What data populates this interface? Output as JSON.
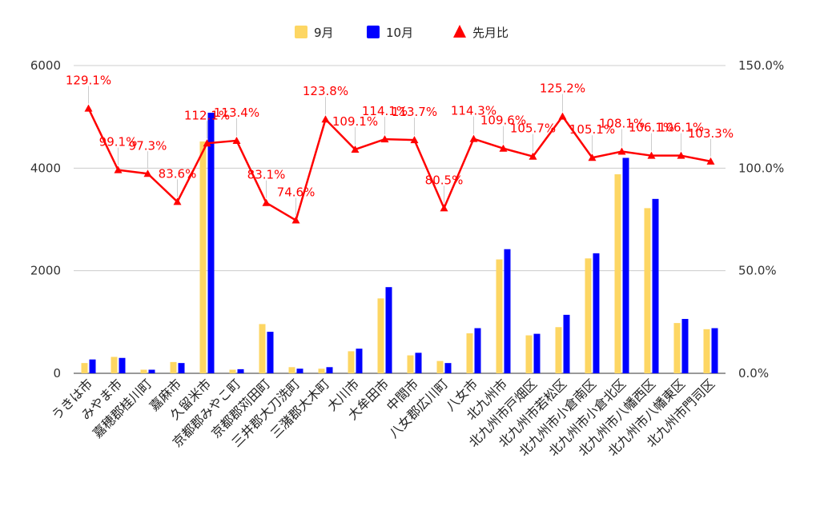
{
  "chart_data": {
    "type": "bar",
    "title": "",
    "categories": [
      "うきは市",
      "みやま市",
      "嘉穂郡桂川町",
      "嘉麻市",
      "久留米市",
      "京都郡みやこ町",
      "京都郡苅田町",
      "三井郡大刀洗町",
      "三潴郡大木町",
      "大川市",
      "大牟田市",
      "中間市",
      "八女郡広川町",
      "八女市",
      "北九州市",
      "北九州市戸畑区",
      "北九州市若松区",
      "北九州市小倉南区",
      "北九州市小倉北区",
      "北九州市八幡西区",
      "北九州市八幡東区",
      "北九州市門司区"
    ],
    "series": [
      {
        "name": "9月",
        "type": "bar",
        "axis": "left",
        "color": "#fdd663",
        "values": [
          200,
          320,
          70,
          220,
          4520,
          70,
          960,
          120,
          90,
          430,
          1460,
          350,
          240,
          780,
          2220,
          740,
          900,
          2240,
          3880,
          3220,
          980,
          860
        ]
      },
      {
        "name": "10月",
        "type": "bar",
        "axis": "left",
        "color": "#0000ff",
        "values": [
          270,
          300,
          70,
          200,
          5080,
          80,
          810,
          90,
          120,
          480,
          1680,
          400,
          200,
          880,
          2420,
          770,
          1140,
          2340,
          4200,
          3400,
          1060,
          880
        ]
      },
      {
        "name": "先月比",
        "type": "line",
        "axis": "right",
        "color": "#ff0000",
        "values": [
          129.1,
          99.1,
          97.3,
          83.6,
          112.1,
          113.4,
          83.1,
          74.6,
          123.8,
          109.1,
          114.1,
          113.7,
          80.5,
          114.3,
          109.6,
          105.7,
          125.2,
          105.1,
          108.1,
          106.1,
          106.1,
          103.3
        ],
        "labels": [
          "129.1%",
          "99.1%",
          "97.3%",
          "83.6%",
          "112.1%",
          "113.4%",
          "83.1%",
          "74.6%",
          "123.8%",
          "109.1%",
          "114.1%",
          "113.7%",
          "80.5%",
          "114.3%",
          "109.6%",
          "105.7%",
          "125.2%",
          "105.1%",
          "108.1%",
          "106.1%",
          "106.1%",
          "103.3%"
        ]
      }
    ],
    "y_left": {
      "min": 0,
      "max": 6000,
      "ticks": [
        "0",
        "2000",
        "4000",
        "6000"
      ],
      "tick_values": [
        0,
        2000,
        4000,
        6000
      ]
    },
    "y_right": {
      "min": 0,
      "max": 150,
      "ticks": [
        "0.0%",
        "50.0%",
        "100.0%",
        "150.0%"
      ],
      "tick_values": [
        0,
        50,
        100,
        150
      ]
    },
    "grid": true,
    "legend_position": "top-center"
  }
}
